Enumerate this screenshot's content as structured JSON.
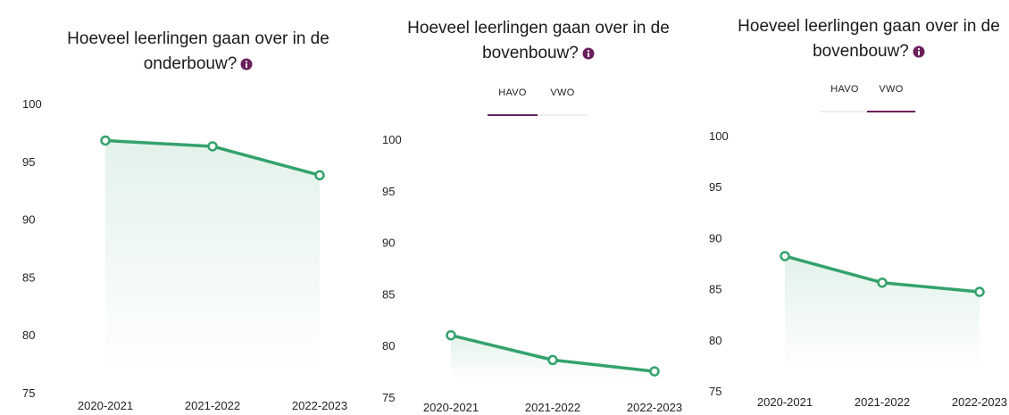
{
  "chart_data": [
    {
      "type": "line",
      "title": "Hoeveel leerlingen gaan over in de onderbouw?",
      "categories": [
        "2020-2021",
        "2021-2022",
        "2022-2023"
      ],
      "values": [
        96.8,
        96.3,
        93.8
      ],
      "color": "#34a26c",
      "ylim": [
        75,
        100
      ],
      "yticks": [
        75,
        80,
        85,
        90,
        95,
        100
      ]
    },
    {
      "type": "line",
      "title": "Hoeveel leerlingen gaan over in de bovenbouw?",
      "tabs": [
        "HAVO",
        "VWO"
      ],
      "active_tab": "HAVO",
      "categories": [
        "2020-2021",
        "2021-2022",
        "2022-2023"
      ],
      "values": [
        81.0,
        78.6,
        77.5
      ],
      "color": "#34a26c",
      "ylim": [
        75,
        100
      ],
      "yticks": [
        75,
        80,
        85,
        90,
        95,
        100
      ]
    },
    {
      "type": "line",
      "title": "Hoeveel leerlingen gaan over in de bovenbouw?",
      "tabs": [
        "HAVO",
        "VWO"
      ],
      "active_tab": "VWO",
      "categories": [
        "2020-2021",
        "2021-2022",
        "2022-2023"
      ],
      "values": [
        88.2,
        85.6,
        84.7
      ],
      "color": "#34a26c",
      "ylim": [
        75,
        100
      ],
      "yticks": [
        75,
        80,
        85,
        90,
        95,
        100
      ]
    }
  ]
}
